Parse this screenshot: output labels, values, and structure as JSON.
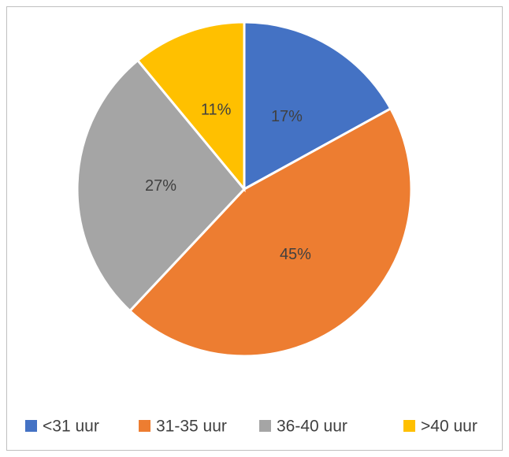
{
  "chart_data": {
    "type": "pie",
    "categories": [
      "<31 uur",
      "31-35 uur",
      "36-40 uur",
      ">40 uur"
    ],
    "values": [
      17,
      45,
      27,
      11
    ],
    "value_labels": [
      "17%",
      "45%",
      "27%",
      "11%"
    ],
    "colors": [
      "#4472c4",
      "#ed7d31",
      "#a5a5a5",
      "#ffc000"
    ],
    "legend": "bottom"
  }
}
